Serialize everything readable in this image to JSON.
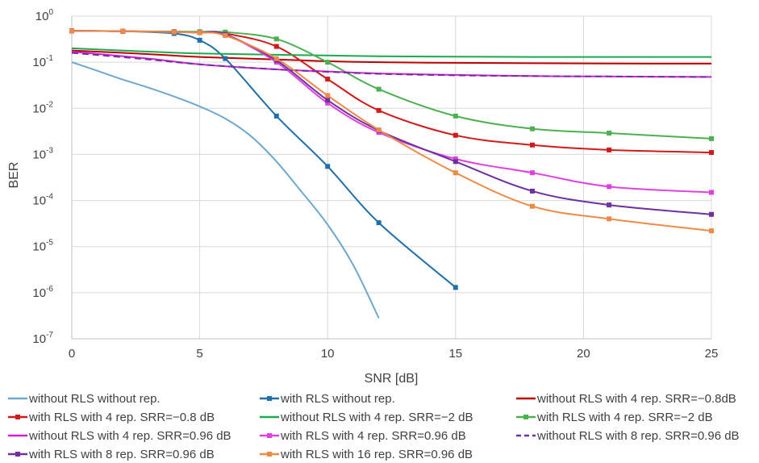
{
  "chart_data": {
    "type": "line",
    "title": "",
    "xlabel": "SNR [dB]",
    "ylabel": "BER",
    "xlim": [
      0,
      25
    ],
    "ylim": [
      1e-07,
      1
    ],
    "yscale": "log",
    "grid": true,
    "legend_position": "bottom",
    "x_ticks": [
      0,
      5,
      10,
      15,
      20,
      25
    ],
    "x_tick_labels": [
      "0",
      "5",
      "10",
      "15",
      "20",
      "25"
    ],
    "y_ticks": [
      1,
      0.1,
      0.01,
      0.001,
      0.0001,
      1e-05,
      1e-06,
      1e-07
    ],
    "y_tick_labels": [
      {
        "base": "10",
        "exp": "0"
      },
      {
        "base": "10",
        "exp": "-1"
      },
      {
        "base": "10",
        "exp": "-2"
      },
      {
        "base": "10",
        "exp": "-3"
      },
      {
        "base": "10",
        "exp": "-4"
      },
      {
        "base": "10",
        "exp": "-5"
      },
      {
        "base": "10",
        "exp": "-6"
      },
      {
        "base": "10",
        "exp": "-7"
      }
    ],
    "series": [
      {
        "name": "without RLS without rep.",
        "color": "#6fa8cf",
        "dash": false,
        "markers": false,
        "x": [
          0,
          1,
          2,
          3,
          4,
          5,
          6,
          7,
          8,
          9,
          10,
          11,
          12
        ],
        "y": [
          0.1,
          0.065,
          0.042,
          0.028,
          0.018,
          0.011,
          0.006,
          0.0025,
          0.0007,
          0.00015,
          3e-05,
          4e-06,
          2.8e-07
        ]
      },
      {
        "name": "with RLS without rep.",
        "color": "#1f6fa8",
        "dash": false,
        "markers": true,
        "x": [
          0,
          2,
          4,
          5,
          6,
          8,
          10,
          12,
          15
        ],
        "y": [
          0.48,
          0.47,
          0.42,
          0.3,
          0.12,
          0.0068,
          0.00055,
          3.3e-05,
          1.3e-06
        ]
      },
      {
        "name": "without RLS with 4 rep. SRR=−0.8dB",
        "color": "#c00000",
        "dash": false,
        "markers": false,
        "x": [
          0,
          3,
          5,
          8,
          10,
          12,
          15,
          18,
          21,
          25
        ],
        "y": [
          0.18,
          0.15,
          0.13,
          0.115,
          0.105,
          0.1,
          0.097,
          0.095,
          0.094,
          0.093
        ]
      },
      {
        "name": "with RLS with 4 rep. SRR=−0.8 dB",
        "color": "#d11a1a",
        "dash": false,
        "markers": true,
        "x": [
          0,
          2,
          4,
          5,
          6,
          8,
          10,
          12,
          15,
          18,
          21,
          25
        ],
        "y": [
          0.48,
          0.47,
          0.46,
          0.45,
          0.42,
          0.22,
          0.043,
          0.009,
          0.0026,
          0.0016,
          0.00125,
          0.0011
        ]
      },
      {
        "name": "without RLS with 4 rep. SRR=−2 dB",
        "color": "#1aaa50",
        "dash": false,
        "markers": false,
        "x": [
          0,
          3,
          5,
          8,
          10,
          12,
          15,
          18,
          21,
          25
        ],
        "y": [
          0.2,
          0.17,
          0.155,
          0.145,
          0.14,
          0.135,
          0.132,
          0.13,
          0.13,
          0.13
        ]
      },
      {
        "name": "with RLS with 4 rep. SRR=−2 dB",
        "color": "#4cb050",
        "dash": false,
        "markers": true,
        "x": [
          0,
          2,
          4,
          5,
          6,
          8,
          10,
          12,
          15,
          18,
          21,
          25
        ],
        "y": [
          0.48,
          0.47,
          0.46,
          0.46,
          0.45,
          0.32,
          0.1,
          0.026,
          0.0068,
          0.0036,
          0.0029,
          0.0022
        ]
      },
      {
        "name": "without RLS with 4 rep. SRR=0.96 dB",
        "color": "#d61ed6",
        "dash": false,
        "markers": false,
        "x": [
          0,
          3,
          5,
          8,
          10,
          12,
          15,
          18,
          21,
          25
        ],
        "y": [
          0.17,
          0.12,
          0.09,
          0.07,
          0.063,
          0.057,
          0.053,
          0.05,
          0.049,
          0.048
        ]
      },
      {
        "name": "with RLS with 4 rep. SRR=0.96 dB",
        "color": "#e040e0",
        "dash": false,
        "markers": true,
        "x": [
          0,
          2,
          4,
          5,
          6,
          8,
          10,
          12,
          15,
          18,
          21,
          25
        ],
        "y": [
          0.48,
          0.47,
          0.45,
          0.44,
          0.4,
          0.1,
          0.013,
          0.003,
          0.0008,
          0.0004,
          0.0002,
          0.00015
        ]
      },
      {
        "name": "without RLS with 8 rep. SRR=0.96 dB",
        "color": "#7030a0",
        "dash": true,
        "markers": false,
        "x": [
          0,
          3,
          5,
          8,
          10,
          12,
          15,
          18,
          21,
          25
        ],
        "y": [
          0.16,
          0.115,
          0.09,
          0.07,
          0.062,
          0.056,
          0.052,
          0.05,
          0.049,
          0.048
        ]
      },
      {
        "name": "with RLS with 8 rep. SRR=0.96 dB",
        "color": "#7030a0",
        "dash": false,
        "markers": true,
        "x": [
          0,
          2,
          4,
          5,
          6,
          8,
          10,
          12,
          15,
          18,
          21,
          25
        ],
        "y": [
          0.48,
          0.47,
          0.45,
          0.44,
          0.4,
          0.11,
          0.015,
          0.0033,
          0.0007,
          0.00016,
          8e-05,
          5e-05
        ]
      },
      {
        "name": "with RLS with 16 rep. SRR=0.96 dB",
        "color": "#ed8a45",
        "dash": false,
        "markers": true,
        "x": [
          0,
          2,
          4,
          5,
          6,
          8,
          10,
          12,
          15,
          18,
          21,
          25
        ],
        "y": [
          0.48,
          0.47,
          0.45,
          0.44,
          0.38,
          0.12,
          0.019,
          0.0034,
          0.0004,
          7.5e-05,
          4e-05,
          2.2e-05
        ]
      }
    ]
  }
}
